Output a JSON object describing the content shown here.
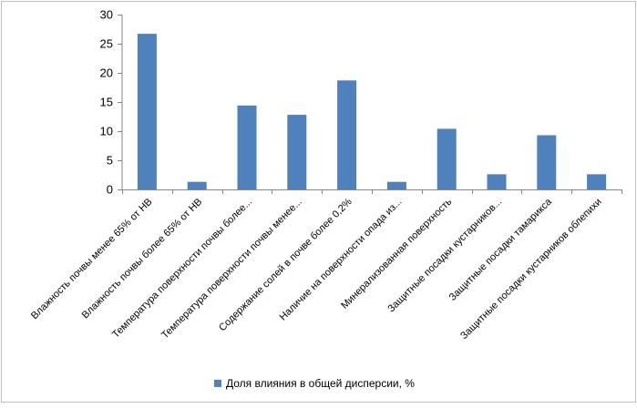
{
  "chart_data": {
    "type": "bar",
    "categories": [
      "Влажность почвы менее 65% от НВ",
      "Влажность почвы более 65% от НВ",
      "Температура поверхности почвы более...",
      "Температура поверхности почвы менее...",
      "Содержание солей в почве более 0,2%",
      "Наличие на поверхности опада из...",
      "Минерализованная поверхность",
      "Защитные посадки кустарников...",
      "Защитные посадки тамарикса",
      "Защитные посадки кустарников облепихи"
    ],
    "series": [
      {
        "name": "Доля влияния в общей дисперсии, %",
        "values": [
          26.7,
          1.3,
          14.4,
          12.8,
          18.7,
          1.3,
          10.4,
          2.6,
          9.3,
          2.6
        ],
        "color": "#4f81bd"
      }
    ],
    "y_ticks": [
      "0",
      "5",
      "10",
      "15",
      "20",
      "25",
      "30"
    ],
    "ylim": [
      0,
      30
    ],
    "grid": false,
    "legend_position": "bottom"
  }
}
